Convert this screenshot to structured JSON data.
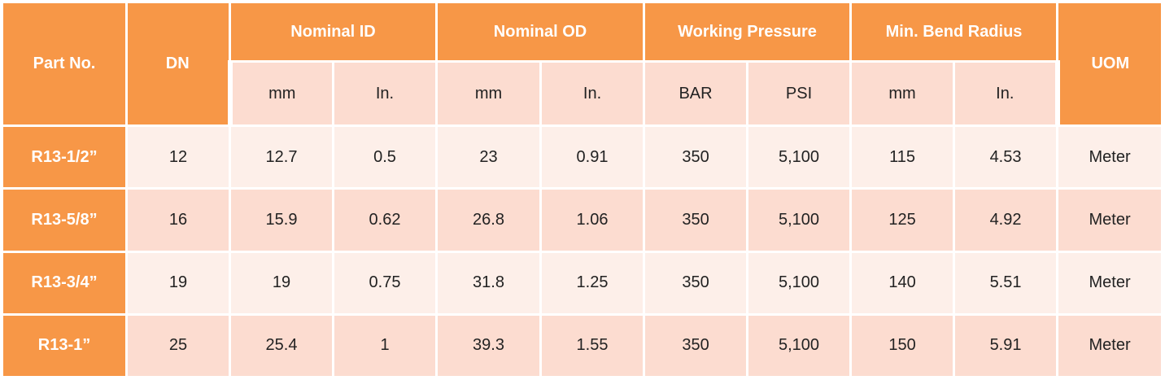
{
  "headers": {
    "part_no": "Part No.",
    "dn": "DN",
    "nominal_id": "Nominal ID",
    "nominal_od": "Nominal OD",
    "working_pressure": "Working Pressure",
    "min_bend_radius": "Min. Bend Radius",
    "uom": "UOM"
  },
  "subheaders": [
    "mm",
    "In.",
    "mm",
    "In.",
    "BAR",
    "PSI",
    "mm",
    "In."
  ],
  "rows": [
    {
      "part": "R13-1/2”",
      "cells": [
        "12",
        "12.7",
        "0.5",
        "23",
        "0.91",
        "350",
        "5,100",
        "115",
        "4.53",
        "Meter"
      ]
    },
    {
      "part": "R13-5/8”",
      "cells": [
        "16",
        "15.9",
        "0.62",
        "26.8",
        "1.06",
        "350",
        "5,100",
        "125",
        "4.92",
        "Meter"
      ]
    },
    {
      "part": "R13-3/4”",
      "cells": [
        "19",
        "19",
        "0.75",
        "31.8",
        "1.25",
        "350",
        "5,100",
        "140",
        "5.51",
        "Meter"
      ]
    },
    {
      "part": "R13-1”",
      "cells": [
        "25",
        "25.4",
        "1",
        "39.3",
        "1.55",
        "350",
        "5,100",
        "150",
        "5.91",
        "Meter"
      ]
    }
  ],
  "colors": {
    "header_orange": "#f79747",
    "row_light": "#fdefe9",
    "row_dark": "#fcdcd0"
  }
}
